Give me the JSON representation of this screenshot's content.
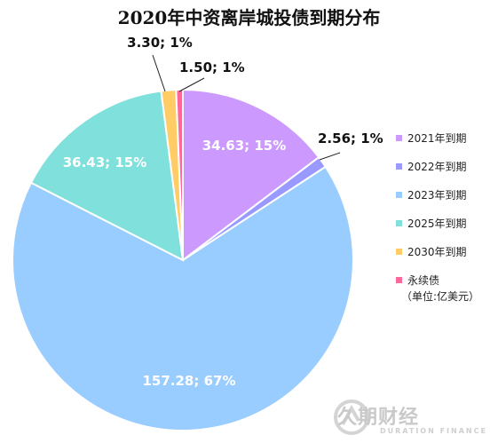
{
  "chart_data": {
    "type": "pie",
    "title": "2020年中资离岸城投债到期分布",
    "series": [
      {
        "name": "2021年到期",
        "value": 34.63,
        "percent": "15%",
        "label": "34.63; 15%",
        "color": "#cc99ff"
      },
      {
        "name": "2022年到期",
        "value": 2.56,
        "percent": "1%",
        "label": "2.56; 1%",
        "color": "#9999ff"
      },
      {
        "name": "2023年到期",
        "value": 157.28,
        "percent": "67%",
        "label": "157.28; 67%",
        "color": "#99ccff"
      },
      {
        "name": "2025年到期",
        "value": 36.43,
        "percent": "15%",
        "label": "36.43; 15%",
        "color": "#80e0dc"
      },
      {
        "name": "2030年到期",
        "value": 3.3,
        "percent": "1%",
        "label": "3.30; 1%",
        "color": "#ffcc66"
      },
      {
        "name": "永续债",
        "value": 1.5,
        "percent": "1%",
        "label": "1.50; 1%",
        "color": "#ff6699"
      }
    ],
    "unit_note": "（单位:亿美元）",
    "legend_position": "right"
  },
  "watermark": {
    "text": "久期财经",
    "subtext": "DURATION FINANCE"
  }
}
